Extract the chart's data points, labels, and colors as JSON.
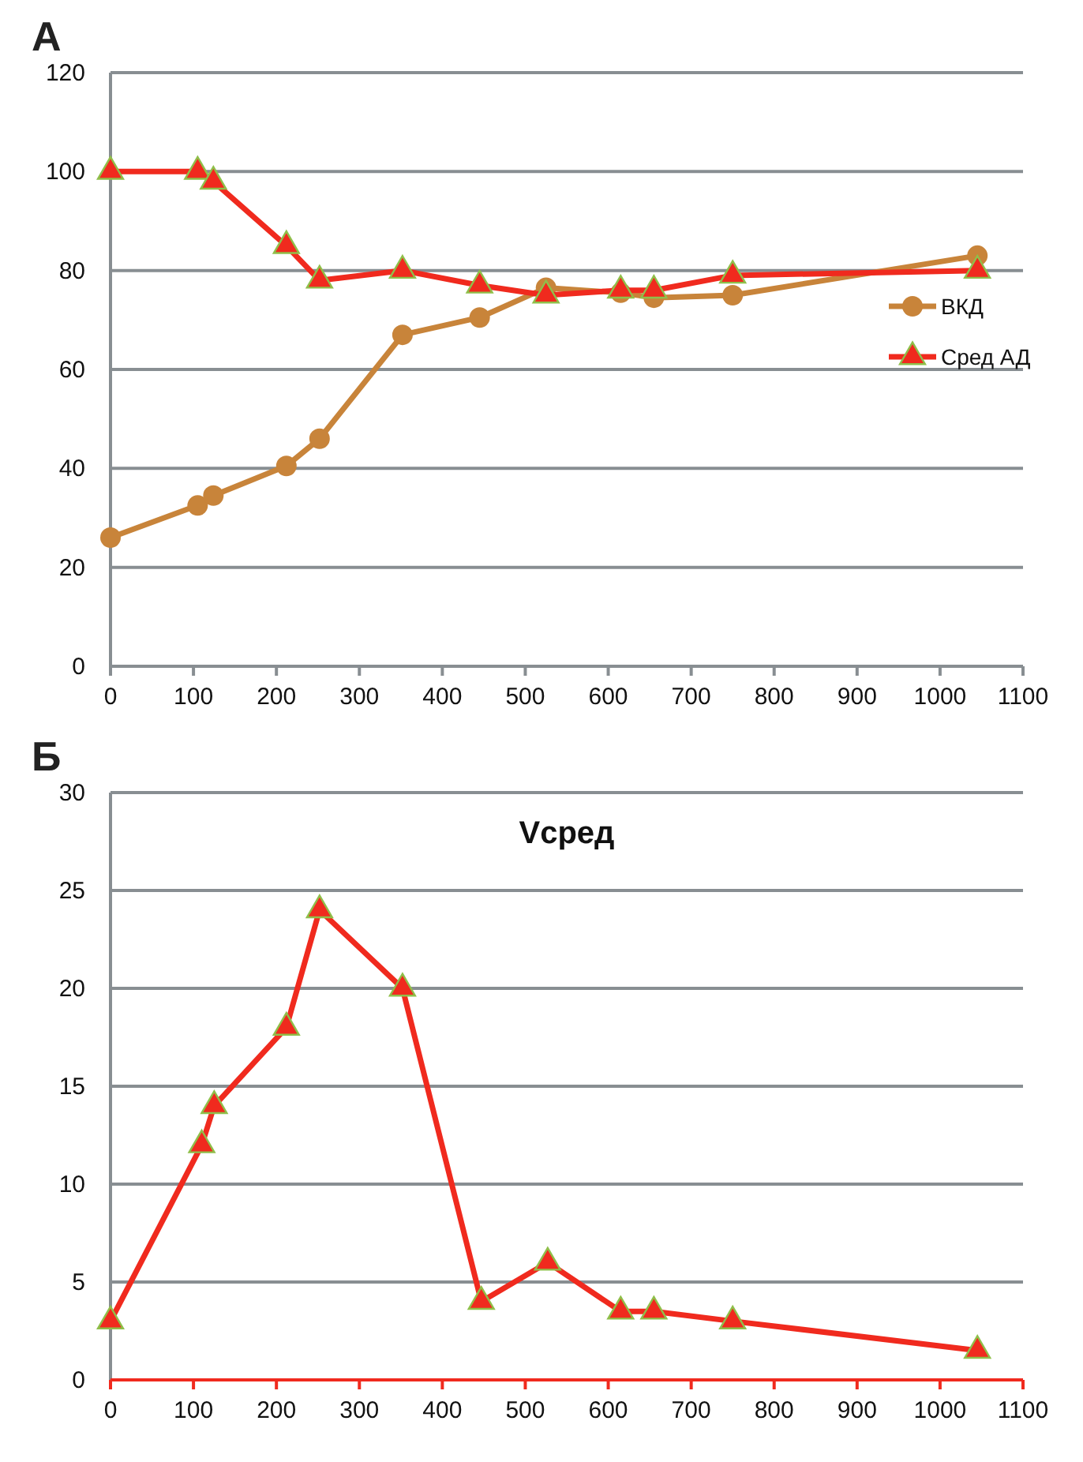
{
  "chart_data": [
    {
      "type": "line",
      "annotations": [
        "А"
      ],
      "x": [
        0,
        105,
        124,
        212,
        252,
        352,
        445,
        525,
        615,
        655,
        750,
        1045
      ],
      "series": [
        {
          "name": "ВКД",
          "color": "#c8843a",
          "marker": "circle",
          "values": [
            26,
            32.5,
            34.5,
            40.5,
            46,
            67,
            70.5,
            76.5,
            75.5,
            74.5,
            75,
            83
          ]
        },
        {
          "name": "Сред АД",
          "color": "#f02a1e",
          "marker": "triangle",
          "values": [
            100,
            100,
            98,
            85,
            78,
            80,
            77,
            75,
            76,
            76,
            79,
            80
          ]
        }
      ],
      "xlim": [
        0,
        1100
      ],
      "xticks": [
        0,
        100,
        200,
        300,
        400,
        500,
        600,
        700,
        800,
        900,
        1000,
        1100
      ],
      "ylim": [
        0,
        120
      ],
      "yticks": [
        0,
        20,
        40,
        60,
        80,
        100,
        120
      ],
      "grid": "y",
      "legend": "right"
    },
    {
      "type": "line",
      "title": "Vсред",
      "annotations": [
        "Б"
      ],
      "x": [
        0,
        110,
        125,
        212,
        252,
        352,
        447,
        527,
        615,
        655,
        750,
        1045
      ],
      "series": [
        {
          "color": "#f02a1e",
          "marker": "triangle",
          "values": [
            3,
            12,
            14,
            18,
            24,
            20,
            4,
            6,
            3.5,
            3.5,
            3,
            1.5
          ]
        }
      ],
      "xlim": [
        0,
        1100
      ],
      "xticks": [
        0,
        100,
        200,
        300,
        400,
        500,
        600,
        700,
        800,
        900,
        1000,
        1100
      ],
      "ylim": [
        0,
        30
      ],
      "yticks": [
        0,
        5,
        10,
        15,
        20,
        25,
        30
      ],
      "grid": "y"
    }
  ]
}
